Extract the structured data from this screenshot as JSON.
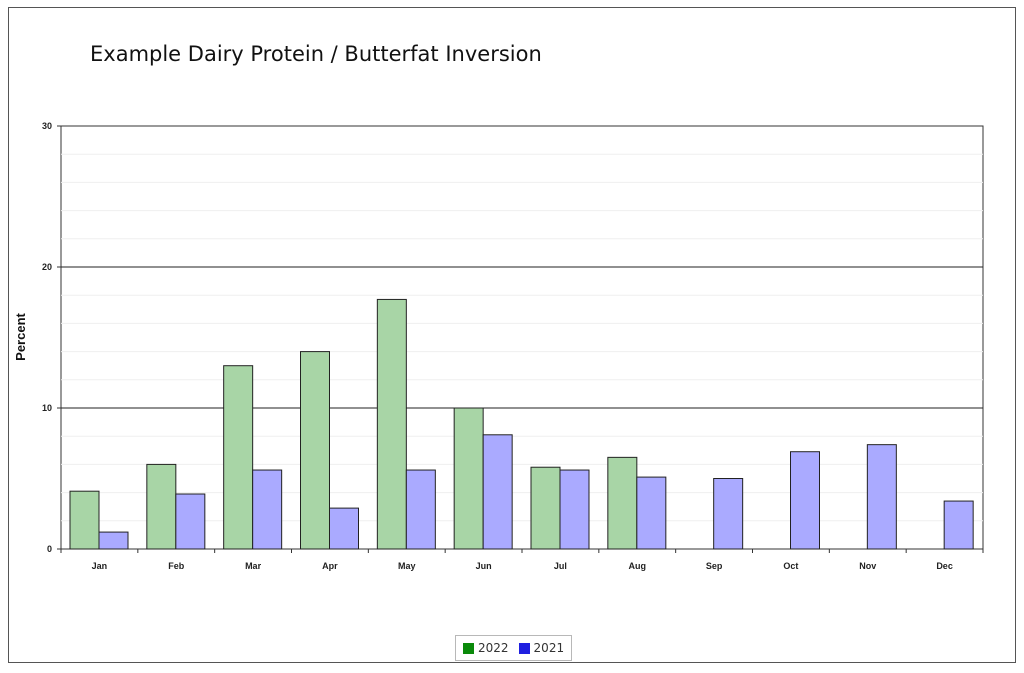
{
  "chart_data": {
    "type": "bar",
    "title": "Example Dairy Protein / Butterfat Inversion",
    "xlabel": "",
    "ylabel": "Percent",
    "ylim": [
      0,
      30
    ],
    "yticks": [
      0,
      10,
      20,
      30
    ],
    "grid": true,
    "legend_position": "bottom",
    "categories": [
      "Jan",
      "Feb",
      "Mar",
      "Apr",
      "May",
      "Jun",
      "Jul",
      "Aug",
      "Sep",
      "Oct",
      "Nov",
      "Dec"
    ],
    "series": [
      {
        "name": "2022",
        "fill": "#a8d5a6",
        "legend_color": "#0a8a0a",
        "values": [
          4.1,
          6.0,
          13.0,
          14.0,
          17.7,
          10.0,
          5.8,
          6.5,
          null,
          null,
          null,
          null
        ]
      },
      {
        "name": "2021",
        "fill": "#aaaaff",
        "legend_color": "#1f1fe0",
        "values": [
          1.2,
          3.9,
          5.6,
          2.9,
          5.6,
          8.1,
          5.6,
          5.1,
          5.0,
          6.9,
          7.4,
          3.4
        ]
      }
    ]
  }
}
